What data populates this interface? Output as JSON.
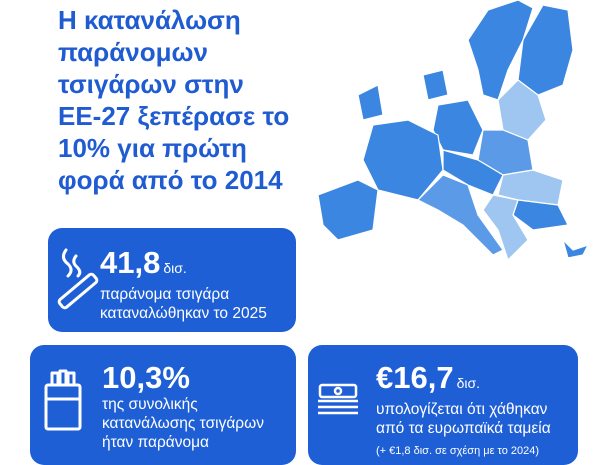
{
  "title_lines": [
    "Η κατανάλωση",
    "παράνομων",
    "τσιγάρων στην",
    "ΕΕ-27 ξεπέρασε το",
    "10% για πρώτη",
    "φορά από το 2014"
  ],
  "cards": [
    {
      "value": "41,8",
      "unit": "δισ.",
      "lines": [
        "παράνομα τσιγάρα",
        "καταναλώθηκαν το 2025"
      ]
    },
    {
      "value": "10,3%",
      "lines": [
        "της συνολικής",
        "κατανάλωσης τσιγάρων",
        "ήταν παράνομα"
      ]
    },
    {
      "value": "€16,7",
      "unit": "δισ.",
      "lines": [
        "υπολογίζεται ότι χάθηκαν",
        "από τα ευρωπαϊκά ταμεία"
      ],
      "note": "(+ €1,8 δισ. σε σχέση με το 2024)"
    }
  ]
}
